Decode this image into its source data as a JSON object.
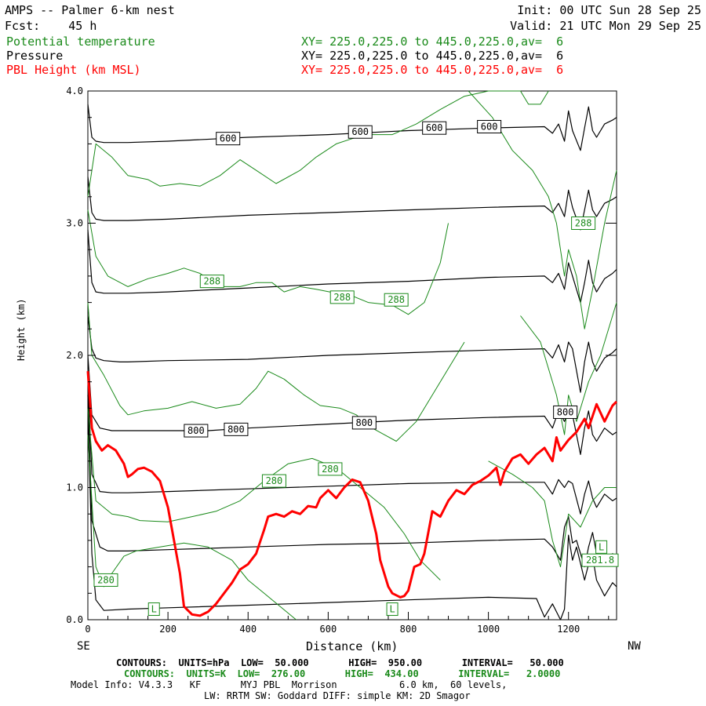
{
  "header": {
    "title": "AMPS -- Palmer 6-km nest",
    "init": "Init: 00 UTC Sun 28 Sep 25",
    "fcst": "Fcst:    45 h",
    "valid": "Valid: 21 UTC Mon 29 Sep 25",
    "legend": [
      {
        "name": "Potential temperature",
        "xy": "XY= 225.0,225.0 to 445.0,225.0,av=  6",
        "color": "#1a8a1a"
      },
      {
        "name": "Pressure",
        "xy": "XY= 225.0,225.0 to 445.0,225.0,av=  6",
        "color": "#000000"
      },
      {
        "name": "PBL Height (km MSL)",
        "xy": "XY= 225.0,225.0 to 445.0,225.0,av=  6",
        "color": "#ff0000"
      }
    ]
  },
  "footer": {
    "pressure_contours": "CONTOURS:  UNITS=hPa  LOW=  50.000       HIGH=  950.00       INTERVAL=   50.000",
    "theta_contours": "CONTOURS:  UNITS=K  LOW=  276.00       HIGH=  434.00       INTERVAL=   2.0000",
    "model_info_1": "Model Info: V4.3.3   KF       MYJ PBL  Morrison           6.0 km,  60 levels,",
    "model_info_2": "LW: RRTM SW: Goddard DIFF: simple KM: 2D Smagor"
  },
  "chart_data": {
    "type": "line",
    "xlabel": "Distance (km)",
    "ylabel": "Height (km)",
    "xlim": [
      0,
      1320
    ],
    "ylim": [
      0,
      4
    ],
    "x_ticks": [
      0,
      200,
      400,
      600,
      800,
      1000,
      1200
    ],
    "y_ticks": [
      "0.0",
      "1.0",
      "2.0",
      "3.0",
      "4.0"
    ],
    "left_end_label": "SE",
    "right_end_label": "NW",
    "pressure_labels": [
      {
        "text": "600",
        "x": 350,
        "y": 3.64
      },
      {
        "text": "600",
        "x": 680,
        "y": 3.69
      },
      {
        "text": "600",
        "x": 865,
        "y": 3.72
      },
      {
        "text": "600",
        "x": 1002,
        "y": 3.73
      },
      {
        "text": "800",
        "x": 270,
        "y": 1.43
      },
      {
        "text": "800",
        "x": 370,
        "y": 1.44
      },
      {
        "text": "800",
        "x": 690,
        "y": 1.49
      },
      {
        "text": "800",
        "x": 1192,
        "y": 1.57
      }
    ],
    "theta_labels": [
      {
        "text": "288",
        "x": 1237,
        "y": 3.0
      },
      {
        "text": "288",
        "x": 310,
        "y": 2.56
      },
      {
        "text": "288",
        "x": 635,
        "y": 2.44
      },
      {
        "text": "288",
        "x": 770,
        "y": 2.42
      },
      {
        "text": "280",
        "x": 465,
        "y": 1.05
      },
      {
        "text": "280",
        "x": 605,
        "y": 1.14
      },
      {
        "text": "280",
        "x": 45,
        "y": 0.3
      },
      {
        "text": "L",
        "x": 165,
        "y": 0.08
      },
      {
        "text": "L",
        "x": 760,
        "y": 0.08
      },
      {
        "text": "L",
        "x": 1282,
        "y": 0.55
      },
      {
        "text": "281.8",
        "x": 1282,
        "y": 0.45
      }
    ],
    "series": [
      {
        "name": "PBL Height (km MSL)",
        "color": "#ff0000",
        "x": [
          0,
          10,
          20,
          35,
          50,
          70,
          90,
          100,
          110,
          125,
          140,
          160,
          180,
          200,
          215,
          230,
          240,
          260,
          280,
          300,
          320,
          340,
          360,
          380,
          400,
          420,
          440,
          450,
          470,
          490,
          510,
          530,
          550,
          570,
          580,
          600,
          620,
          640,
          660,
          680,
          700,
          720,
          730,
          750,
          760,
          780,
          790,
          800,
          815,
          830,
          840,
          860,
          880,
          900,
          920,
          940,
          960,
          980,
          1000,
          1020,
          1030,
          1040,
          1060,
          1080,
          1100,
          1120,
          1140,
          1160,
          1170,
          1180,
          1200,
          1220,
          1240,
          1250,
          1270,
          1290,
          1310,
          1320
        ],
        "y": [
          1.88,
          1.45,
          1.35,
          1.28,
          1.32,
          1.28,
          1.18,
          1.08,
          1.1,
          1.14,
          1.15,
          1.12,
          1.05,
          0.85,
          0.6,
          0.35,
          0.1,
          0.04,
          0.03,
          0.06,
          0.12,
          0.2,
          0.28,
          0.38,
          0.42,
          0.5,
          0.68,
          0.78,
          0.8,
          0.78,
          0.82,
          0.8,
          0.86,
          0.85,
          0.92,
          0.98,
          0.92,
          1.0,
          1.06,
          1.04,
          0.9,
          0.65,
          0.45,
          0.25,
          0.2,
          0.17,
          0.18,
          0.22,
          0.4,
          0.42,
          0.5,
          0.82,
          0.78,
          0.9,
          0.98,
          0.95,
          1.02,
          1.05,
          1.09,
          1.15,
          1.02,
          1.12,
          1.22,
          1.25,
          1.18,
          1.25,
          1.3,
          1.2,
          1.38,
          1.28,
          1.36,
          1.42,
          1.52,
          1.45,
          1.63,
          1.5,
          1.62,
          1.65
        ]
      },
      {
        "name": "pressure-950",
        "color": "#000000",
        "x": [
          0,
          10,
          20,
          40,
          100,
          200,
          400,
          600,
          800,
          1000,
          1120,
          1140,
          1160,
          1180,
          1190,
          1200,
          1210,
          1220,
          1240,
          1250,
          1260,
          1270,
          1290,
          1310,
          1320
        ],
        "y": [
          1.6,
          0.5,
          0.15,
          0.07,
          0.08,
          0.09,
          0.11,
          0.13,
          0.15,
          0.17,
          0.16,
          0.02,
          0.12,
          0.0,
          0.08,
          0.64,
          0.45,
          0.55,
          0.3,
          0.42,
          0.48,
          0.3,
          0.18,
          0.28,
          0.25
        ]
      },
      {
        "name": "pressure-900",
        "color": "#000000",
        "x": [
          0,
          10,
          30,
          50,
          100,
          200,
          400,
          600,
          800,
          1000,
          1140,
          1160,
          1180,
          1190,
          1200,
          1210,
          1220,
          1240,
          1250,
          1260,
          1270,
          1290,
          1310,
          1320
        ],
        "y": [
          1.7,
          0.75,
          0.55,
          0.52,
          0.52,
          0.53,
          0.55,
          0.57,
          0.58,
          0.6,
          0.61,
          0.55,
          0.45,
          0.7,
          0.78,
          0.58,
          0.6,
          0.4,
          0.55,
          0.66,
          0.5,
          0.42,
          0.5,
          0.48
        ]
      },
      {
        "name": "pressure-850",
        "color": "#000000",
        "x": [
          0,
          10,
          30,
          60,
          100,
          200,
          400,
          600,
          800,
          1000,
          1140,
          1160,
          1175,
          1190,
          1200,
          1210,
          1230,
          1240,
          1250,
          1260,
          1270,
          1290,
          1310,
          1320
        ],
        "y": [
          1.8,
          1.1,
          0.97,
          0.96,
          0.96,
          0.97,
          0.99,
          1.01,
          1.03,
          1.04,
          1.04,
          0.95,
          1.06,
          1.0,
          1.05,
          1.03,
          0.8,
          0.95,
          1.05,
          0.92,
          0.85,
          0.95,
          0.9,
          0.92
        ]
      },
      {
        "name": "pressure-800",
        "color": "#000000",
        "x": [
          0,
          10,
          30,
          60,
          100,
          200,
          300,
          400,
          600,
          800,
          1000,
          1140,
          1160,
          1175,
          1190,
          1200,
          1210,
          1230,
          1240,
          1250,
          1260,
          1270,
          1290,
          1310,
          1320
        ],
        "y": [
          2.0,
          1.55,
          1.45,
          1.43,
          1.43,
          1.43,
          1.43,
          1.45,
          1.48,
          1.51,
          1.53,
          1.54,
          1.45,
          1.58,
          1.5,
          1.58,
          1.55,
          1.25,
          1.45,
          1.58,
          1.4,
          1.35,
          1.45,
          1.4,
          1.42
        ]
      },
      {
        "name": "pressure-750",
        "color": "#000000",
        "x": [
          0,
          10,
          20,
          40,
          80,
          100,
          200,
          400,
          600,
          800,
          1000,
          1140,
          1160,
          1175,
          1190,
          1200,
          1210,
          1230,
          1240,
          1250,
          1260,
          1270,
          1290,
          1310,
          1320
        ],
        "y": [
          2.3,
          2.05,
          1.98,
          1.96,
          1.95,
          1.95,
          1.96,
          1.97,
          2.0,
          2.02,
          2.04,
          2.05,
          1.98,
          2.08,
          1.95,
          2.1,
          2.05,
          1.72,
          1.95,
          2.1,
          1.95,
          1.88,
          1.98,
          2.02,
          2.05
        ]
      },
      {
        "name": "pressure-700",
        "color": "#000000",
        "x": [
          0,
          10,
          20,
          40,
          100,
          200,
          400,
          600,
          800,
          1000,
          1140,
          1160,
          1175,
          1190,
          1200,
          1210,
          1230,
          1240,
          1250,
          1260,
          1270,
          1290,
          1310,
          1320
        ],
        "y": [
          2.95,
          2.55,
          2.48,
          2.47,
          2.47,
          2.48,
          2.51,
          2.54,
          2.56,
          2.59,
          2.6,
          2.55,
          2.62,
          2.5,
          2.7,
          2.6,
          2.4,
          2.55,
          2.72,
          2.55,
          2.48,
          2.58,
          2.62,
          2.65
        ]
      },
      {
        "name": "pressure-650",
        "color": "#000000",
        "x": [
          0,
          10,
          20,
          40,
          100,
          200,
          400,
          600,
          800,
          1000,
          1140,
          1160,
          1175,
          1190,
          1200,
          1210,
          1230,
          1240,
          1250,
          1260,
          1270,
          1290,
          1310,
          1320
        ],
        "y": [
          3.35,
          3.08,
          3.03,
          3.02,
          3.02,
          3.03,
          3.06,
          3.08,
          3.1,
          3.12,
          3.13,
          3.08,
          3.15,
          3.05,
          3.25,
          3.12,
          2.95,
          3.1,
          3.25,
          3.1,
          3.05,
          3.15,
          3.18,
          3.2
        ]
      },
      {
        "name": "pressure-600",
        "color": "#000000",
        "x": [
          0,
          10,
          20,
          40,
          100,
          200,
          400,
          600,
          800,
          1000,
          1140,
          1160,
          1175,
          1190,
          1200,
          1210,
          1230,
          1240,
          1250,
          1260,
          1270,
          1290,
          1310,
          1320
        ],
        "y": [
          3.9,
          3.65,
          3.62,
          3.61,
          3.61,
          3.62,
          3.65,
          3.67,
          3.7,
          3.72,
          3.73,
          3.68,
          3.75,
          3.62,
          3.85,
          3.7,
          3.55,
          3.72,
          3.88,
          3.7,
          3.65,
          3.75,
          3.78,
          3.8
        ]
      },
      {
        "name": "theta-a",
        "color": "#1a8a1a",
        "x": [
          0,
          20,
          60,
          100,
          150,
          180,
          230,
          280,
          330,
          380,
          420,
          470,
          530,
          570,
          620,
          660,
          700,
          760,
          820,
          880,
          940,
          1000,
          1060,
          1080,
          1100,
          1130,
          1150
        ],
        "y": [
          3.2,
          3.6,
          3.5,
          3.36,
          3.33,
          3.28,
          3.3,
          3.28,
          3.36,
          3.48,
          3.4,
          3.3,
          3.4,
          3.5,
          3.6,
          3.64,
          3.67,
          3.67,
          3.75,
          3.86,
          3.96,
          4.0,
          4.0,
          4.0,
          3.9,
          3.9,
          4.0
        ]
      },
      {
        "name": "theta-b",
        "color": "#1a8a1a",
        "x": [
          0,
          20,
          50,
          100,
          150,
          200,
          240,
          280,
          330,
          380,
          420,
          460,
          490,
          530,
          570,
          620,
          660,
          700,
          760,
          800,
          840,
          880,
          900
        ],
        "y": [
          3.1,
          2.75,
          2.6,
          2.52,
          2.58,
          2.62,
          2.66,
          2.62,
          2.52,
          2.52,
          2.55,
          2.55,
          2.48,
          2.52,
          2.5,
          2.47,
          2.45,
          2.4,
          2.38,
          2.31,
          2.4,
          2.7,
          3.0
        ]
      },
      {
        "name": "theta-c",
        "color": "#1a8a1a",
        "x": [
          0,
          10,
          40,
          80,
          100,
          140,
          200,
          260,
          320,
          380,
          420,
          450,
          490,
          540,
          580,
          630,
          670,
          710,
          740,
          770,
          820,
          860,
          900,
          940
        ],
        "y": [
          2.4,
          2.0,
          1.85,
          1.62,
          1.55,
          1.58,
          1.6,
          1.65,
          1.6,
          1.63,
          1.75,
          1.88,
          1.82,
          1.7,
          1.62,
          1.6,
          1.55,
          1.45,
          1.4,
          1.35,
          1.5,
          1.7,
          1.9,
          2.1
        ]
      },
      {
        "name": "theta-d",
        "color": "#1a8a1a",
        "x": [
          0,
          20,
          60,
          100,
          130,
          200,
          260,
          320,
          380,
          440,
          500,
          560,
          620,
          660,
          700,
          740,
          790,
          830,
          880
        ],
        "y": [
          1.6,
          0.9,
          0.8,
          0.78,
          0.75,
          0.74,
          0.78,
          0.82,
          0.9,
          1.05,
          1.18,
          1.22,
          1.15,
          1.05,
          0.95,
          0.85,
          0.65,
          0.45,
          0.3
        ]
      },
      {
        "name": "theta-e",
        "color": "#1a8a1a",
        "x": [
          0,
          20,
          40,
          60,
          90,
          120,
          180,
          240,
          300,
          360,
          400,
          440,
          480,
          520
        ],
        "y": [
          1.4,
          0.4,
          0.25,
          0.35,
          0.48,
          0.52,
          0.55,
          0.58,
          0.55,
          0.45,
          0.3,
          0.2,
          0.1,
          0.0
        ]
      },
      {
        "name": "theta-f",
        "color": "#1a8a1a",
        "x": [
          950,
          1010,
          1060,
          1110,
          1150,
          1170,
          1190,
          1200,
          1220,
          1240,
          1260,
          1290,
          1320
        ],
        "y": [
          4.0,
          3.8,
          3.55,
          3.4,
          3.2,
          3.0,
          2.6,
          2.8,
          2.6,
          2.2,
          2.5,
          3.0,
          3.4
        ]
      },
      {
        "name": "theta-g",
        "color": "#1a8a1a",
        "x": [
          1080,
          1130,
          1150,
          1170,
          1190,
          1200,
          1220,
          1250,
          1280,
          1320
        ],
        "y": [
          2.3,
          2.1,
          1.9,
          1.7,
          1.4,
          1.7,
          1.5,
          1.8,
          2.0,
          2.4
        ]
      },
      {
        "name": "theta-h",
        "color": "#1a8a1a",
        "x": [
          1000,
          1060,
          1110,
          1140,
          1160,
          1180,
          1200,
          1230,
          1260,
          1290,
          1320
        ],
        "y": [
          1.2,
          1.1,
          1.0,
          0.9,
          0.6,
          0.4,
          0.8,
          0.7,
          0.9,
          1.0,
          1.0
        ]
      }
    ]
  }
}
